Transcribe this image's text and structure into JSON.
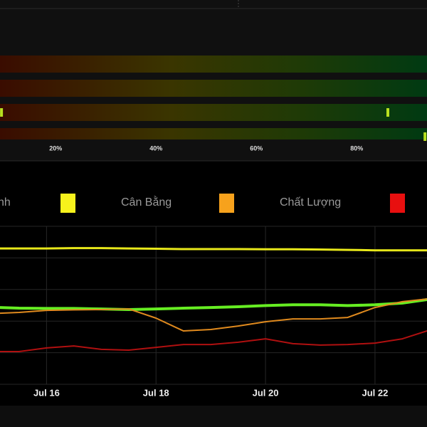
{
  "chart_data": [
    {
      "type": "strip",
      "categories": [
        null,
        null,
        null,
        null
      ],
      "series": [
        {
          "color": "#c8e000",
          "values": []
        },
        {
          "color": "#c8e000",
          "values": []
        },
        {
          "color": "#b8e020",
          "values": [
            9.2,
            86.2
          ]
        },
        {
          "color": "#b8e020",
          "values": [
            93.6
          ]
        }
      ],
      "xlim": [
        8.9,
        94.0
      ],
      "xticks": [
        {
          "value": 20,
          "label": "20%"
        },
        {
          "value": 40,
          "label": "40%"
        },
        {
          "value": 60,
          "label": "60%"
        },
        {
          "value": 80,
          "label": "80%"
        }
      ]
    },
    {
      "type": "line",
      "x": [
        15.15,
        15.5,
        16,
        16.5,
        17,
        17.5,
        18,
        18.5,
        19,
        19.5,
        20,
        20.5,
        21,
        21.5,
        22,
        22.5,
        22.95
      ],
      "series": [
        {
          "name": "nh",
          "color": "#66ee22",
          "width": 4,
          "values": [
            48.6,
            48.2,
            48,
            48,
            47.7,
            47.3,
            47.7,
            48.2,
            48.6,
            49.1,
            49.8,
            50.3,
            50.3,
            49.8,
            50.3,
            51.4,
            53.6
          ]
        },
        {
          "name": "Cân Bằng",
          "color": "#e8e81a",
          "width": 3,
          "values": [
            86,
            86,
            86,
            86.2,
            86.2,
            86,
            85.8,
            85.6,
            85.6,
            85.6,
            85.5,
            85.5,
            85.3,
            85.1,
            84.8,
            84.8,
            84.8
          ]
        },
        {
          "name": "Chất Lượng",
          "color": "#e08a1e",
          "width": 2,
          "values": [
            45,
            45.5,
            46.8,
            47.1,
            47.3,
            47.7,
            41.9,
            33.8,
            34.7,
            36.9,
            39.6,
            41.4,
            41.4,
            42.3,
            48.6,
            52.3,
            54
          ]
        },
        {
          "color": "#b01010",
          "width": 2,
          "values": [
            20.7,
            20.7,
            23,
            24.3,
            22.1,
            21.6,
            23.4,
            25.2,
            25.2,
            26.6,
            28.8,
            25.7,
            24.8,
            25.2,
            26.1,
            28.8,
            33.8
          ]
        }
      ],
      "legend_colors": [
        "#f7f21c",
        "#f7a21c",
        "#e80f0f"
      ],
      "xlim": [
        15.15,
        22.95
      ],
      "xticks": [
        {
          "value": 16,
          "label": "Jul 16"
        },
        {
          "value": 18,
          "label": "Jul 18"
        },
        {
          "value": 20,
          "label": "Jul 20"
        },
        {
          "value": 22,
          "label": "Jul 22"
        }
      ],
      "ylim": [
        0,
        100
      ],
      "ygrid": [
        20,
        40,
        60,
        80
      ],
      "grid": true
    }
  ]
}
